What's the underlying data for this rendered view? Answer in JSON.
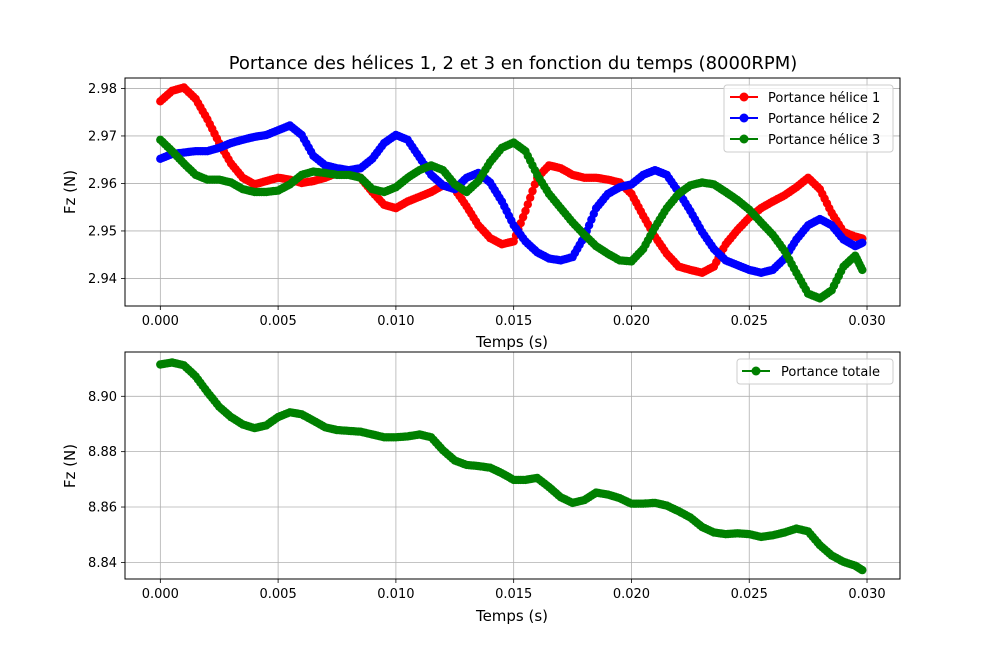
{
  "chart_data": [
    {
      "type": "line",
      "title": "Portance des hélices 1, 2 et 3 en fonction du temps (8000RPM)",
      "xlabel": "Temps (s)",
      "ylabel": "Fz (N)",
      "xlim": [
        -0.0015,
        0.0314
      ],
      "ylim": [
        2.9342,
        2.9822
      ],
      "xticks": [
        0.0,
        0.005,
        0.01,
        0.015,
        0.02,
        0.025,
        0.03
      ],
      "xtick_labels": [
        "0.000",
        "0.005",
        "0.010",
        "0.015",
        "0.020",
        "0.025",
        "0.030"
      ],
      "yticks": [
        2.94,
        2.95,
        2.96,
        2.97,
        2.98
      ],
      "ytick_labels": [
        "2.94",
        "2.95",
        "2.96",
        "2.97",
        "2.98"
      ],
      "grid": true,
      "legend_position": "top-right",
      "marker": "circle",
      "series": [
        {
          "name": "Portance hélice 1",
          "color": "#ff0000",
          "x": [
            0.0,
            0.0005,
            0.001,
            0.0015,
            0.002,
            0.0025,
            0.003,
            0.0035,
            0.004,
            0.0045,
            0.005,
            0.0055,
            0.006,
            0.0065,
            0.007,
            0.0075,
            0.008,
            0.0085,
            0.009,
            0.0095,
            0.01,
            0.0105,
            0.011,
            0.0115,
            0.012,
            0.0125,
            0.013,
            0.0135,
            0.014,
            0.0145,
            0.015,
            0.0155,
            0.016,
            0.0165,
            0.017,
            0.0175,
            0.018,
            0.0185,
            0.019,
            0.0195,
            0.02,
            0.0205,
            0.021,
            0.0215,
            0.022,
            0.0225,
            0.023,
            0.0235,
            0.024,
            0.0245,
            0.025,
            0.0255,
            0.026,
            0.0265,
            0.027,
            0.0275,
            0.028,
            0.0285,
            0.029,
            0.0295,
            0.0298
          ],
          "y": [
            2.9773,
            2.9795,
            2.9802,
            2.9778,
            2.9735,
            2.9685,
            2.9642,
            2.9612,
            2.9598,
            2.9605,
            2.9612,
            2.9608,
            2.9601,
            2.9605,
            2.9612,
            2.9622,
            2.9622,
            2.9612,
            2.9582,
            2.9555,
            2.9548,
            2.9562,
            2.9572,
            2.9582,
            2.9596,
            2.9588,
            2.9552,
            2.9512,
            2.9485,
            2.9472,
            2.9478,
            2.9542,
            2.9612,
            2.9638,
            2.9632,
            2.9618,
            2.9612,
            2.9612,
            2.9608,
            2.9602,
            2.9578,
            2.9532,
            2.9488,
            2.9452,
            2.9425,
            2.9418,
            2.9412,
            2.9425,
            2.9472,
            2.9502,
            2.9528,
            2.9548,
            2.9562,
            2.9575,
            2.9592,
            2.9612,
            2.9588,
            2.9538,
            2.9498,
            2.9488,
            2.9484
          ]
        },
        {
          "name": "Portance hélice 2",
          "color": "#0000ff",
          "x": [
            0.0,
            0.0005,
            0.001,
            0.0015,
            0.002,
            0.0025,
            0.003,
            0.0035,
            0.004,
            0.0045,
            0.005,
            0.0055,
            0.006,
            0.0065,
            0.007,
            0.0075,
            0.008,
            0.0085,
            0.009,
            0.0095,
            0.01,
            0.0105,
            0.011,
            0.0115,
            0.012,
            0.0125,
            0.013,
            0.0135,
            0.014,
            0.0145,
            0.015,
            0.0155,
            0.016,
            0.0165,
            0.017,
            0.0175,
            0.018,
            0.0185,
            0.019,
            0.0195,
            0.02,
            0.0205,
            0.021,
            0.0215,
            0.022,
            0.0225,
            0.023,
            0.0235,
            0.024,
            0.0245,
            0.025,
            0.0255,
            0.026,
            0.0265,
            0.027,
            0.0275,
            0.028,
            0.0285,
            0.029,
            0.0295,
            0.0298
          ],
          "y": [
            2.9652,
            2.9662,
            2.9665,
            2.9668,
            2.9668,
            2.9675,
            2.9685,
            2.9692,
            2.9698,
            2.9702,
            2.9712,
            2.9722,
            2.9702,
            2.9658,
            2.9638,
            2.9632,
            2.9628,
            2.9632,
            2.9652,
            2.9685,
            2.9702,
            2.9692,
            2.9655,
            2.9618,
            2.9596,
            2.9588,
            2.9612,
            2.9622,
            2.9602,
            2.9562,
            2.9512,
            2.9478,
            2.9455,
            2.9442,
            2.9438,
            2.9445,
            2.9488,
            2.9548,
            2.9578,
            2.9592,
            2.9598,
            2.9618,
            2.9628,
            2.9618,
            2.9582,
            2.9542,
            2.9498,
            2.9462,
            2.9438,
            2.9428,
            2.9418,
            2.9412,
            2.9418,
            2.9442,
            2.9482,
            2.9512,
            2.9525,
            2.9512,
            2.9482,
            2.9468,
            2.9475
          ]
        },
        {
          "name": "Portance hélice 3",
          "color": "#008000",
          "x": [
            0.0,
            0.0005,
            0.001,
            0.0015,
            0.002,
            0.0025,
            0.003,
            0.0035,
            0.004,
            0.0045,
            0.005,
            0.0055,
            0.006,
            0.0065,
            0.007,
            0.0075,
            0.008,
            0.0085,
            0.009,
            0.0095,
            0.01,
            0.0105,
            0.011,
            0.0115,
            0.012,
            0.0125,
            0.013,
            0.0135,
            0.014,
            0.0145,
            0.015,
            0.0155,
            0.016,
            0.0165,
            0.017,
            0.0175,
            0.018,
            0.0185,
            0.019,
            0.0195,
            0.02,
            0.0205,
            0.021,
            0.0215,
            0.022,
            0.0225,
            0.023,
            0.0235,
            0.024,
            0.0245,
            0.025,
            0.0255,
            0.026,
            0.0265,
            0.027,
            0.0275,
            0.028,
            0.0285,
            0.029,
            0.0295,
            0.0298
          ],
          "y": [
            2.9692,
            2.9668,
            2.9642,
            2.9618,
            2.9608,
            2.9608,
            2.9602,
            2.9588,
            2.9582,
            2.9582,
            2.9585,
            2.9598,
            2.9618,
            2.9625,
            2.9622,
            2.9618,
            2.9618,
            2.9612,
            2.9588,
            2.9582,
            2.9592,
            2.9612,
            2.9628,
            2.9638,
            2.9628,
            2.9598,
            2.9582,
            2.9605,
            2.9645,
            2.9675,
            2.9686,
            2.9668,
            2.9618,
            2.9578,
            2.9548,
            2.9518,
            2.9492,
            2.9468,
            2.9452,
            2.9438,
            2.9436,
            2.9462,
            2.9508,
            2.9548,
            2.9578,
            2.9596,
            2.9602,
            2.9598,
            2.9582,
            2.9565,
            2.9545,
            2.9518,
            2.9492,
            2.9458,
            2.9412,
            2.9368,
            2.9358,
            2.9375,
            2.9425,
            2.9448,
            2.9418
          ]
        }
      ]
    },
    {
      "type": "line",
      "title": "",
      "xlabel": "Temps (s)",
      "ylabel": "Fz (N)",
      "xlim": [
        -0.0015,
        0.0314
      ],
      "ylim": [
        8.834,
        8.916
      ],
      "xticks": [
        0.0,
        0.005,
        0.01,
        0.015,
        0.02,
        0.025,
        0.03
      ],
      "xtick_labels": [
        "0.000",
        "0.005",
        "0.010",
        "0.015",
        "0.020",
        "0.025",
        "0.030"
      ],
      "yticks": [
        8.84,
        8.86,
        8.88,
        8.9
      ],
      "ytick_labels": [
        "8.84",
        "8.86",
        "8.88",
        "8.90"
      ],
      "grid": true,
      "legend_position": "top-right",
      "marker": "circle",
      "series": [
        {
          "name": "Portance totale",
          "color": "#008000",
          "x": [
            0.0,
            0.0005,
            0.001,
            0.0015,
            0.002,
            0.0025,
            0.003,
            0.0035,
            0.004,
            0.0045,
            0.005,
            0.0055,
            0.006,
            0.0065,
            0.007,
            0.0075,
            0.008,
            0.0085,
            0.009,
            0.0095,
            0.01,
            0.0105,
            0.011,
            0.0115,
            0.012,
            0.0125,
            0.013,
            0.0135,
            0.014,
            0.0145,
            0.015,
            0.0155,
            0.016,
            0.0165,
            0.017,
            0.0175,
            0.018,
            0.0185,
            0.019,
            0.0195,
            0.02,
            0.0205,
            0.021,
            0.0215,
            0.022,
            0.0225,
            0.023,
            0.0235,
            0.024,
            0.0245,
            0.025,
            0.0255,
            0.026,
            0.0265,
            0.027,
            0.0275,
            0.028,
            0.0285,
            0.029,
            0.0295,
            0.0298
          ],
          "y": [
            8.9115,
            8.9122,
            8.9112,
            8.9072,
            8.9015,
            8.8962,
            8.8925,
            8.8898,
            8.8885,
            8.8895,
            8.8925,
            8.8942,
            8.8935,
            8.8912,
            8.8888,
            8.8878,
            8.8875,
            8.8872,
            8.8862,
            8.8852,
            8.8852,
            8.8855,
            8.8862,
            8.8852,
            8.8805,
            8.8768,
            8.8752,
            8.8748,
            8.8742,
            8.8722,
            8.8698,
            8.8698,
            8.8705,
            8.8672,
            8.8635,
            8.8615,
            8.8625,
            8.8652,
            8.8645,
            8.8632,
            8.8612,
            8.8612,
            8.8615,
            8.8605,
            8.8585,
            8.8562,
            8.8528,
            8.8508,
            8.8502,
            8.8505,
            8.8502,
            8.8492,
            8.8498,
            8.8508,
            8.8522,
            8.8512,
            8.8462,
            8.8425,
            8.8402,
            8.8388,
            8.8372
          ]
        }
      ]
    }
  ]
}
